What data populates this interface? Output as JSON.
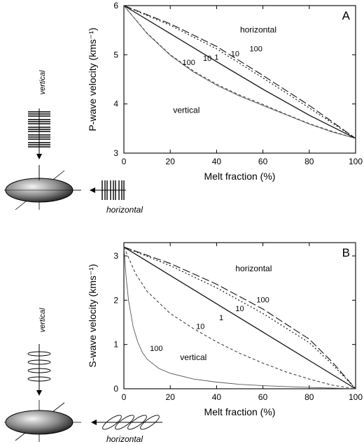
{
  "figure": {
    "side_labels": {
      "vertical": "vertical",
      "horizontal": "horizontal"
    }
  },
  "chart_data": [
    {
      "id": "A",
      "type": "line",
      "panel_label": "A",
      "xlabel": "Melt fraction (%)",
      "ylabel": "P-wave velocity (kms⁻¹)",
      "xlim": [
        0,
        100
      ],
      "ylim": [
        3,
        6
      ],
      "xticks": [
        0,
        20,
        40,
        60,
        80,
        100
      ],
      "yticks": [
        3,
        4,
        5,
        6
      ],
      "grid": false,
      "annotations": [
        {
          "text": "horizontal",
          "x": 58,
          "y": 5.45
        },
        {
          "text": "vertical",
          "x": 27,
          "y": 3.82
        },
        {
          "text": "100",
          "x": 57,
          "y": 5.07
        },
        {
          "text": "10",
          "x": 48,
          "y": 4.97
        },
        {
          "text": "1",
          "x": 40,
          "y": 4.9
        },
        {
          "text": "10",
          "x": 36,
          "y": 4.88
        },
        {
          "text": "100",
          "x": 28,
          "y": 4.79
        }
      ],
      "series": [
        {
          "style": "long-dash",
          "group": "horizontal",
          "label": "100",
          "x": [
            0,
            20,
            40,
            60,
            80,
            100
          ],
          "y": [
            6.0,
            5.63,
            5.17,
            4.58,
            3.97,
            3.3
          ]
        },
        {
          "style": "dotted",
          "group": "horizontal",
          "label": "10",
          "x": [
            0,
            20,
            40,
            60,
            80,
            100
          ],
          "y": [
            6.0,
            5.6,
            5.12,
            4.53,
            3.92,
            3.3
          ]
        },
        {
          "style": "solid",
          "group": "isotropic",
          "label": "1",
          "x": [
            0,
            20,
            40,
            60,
            80,
            100
          ],
          "y": [
            6.0,
            5.43,
            4.86,
            4.3,
            3.77,
            3.3
          ]
        },
        {
          "style": "short-dash",
          "group": "vertical",
          "label": "10",
          "x": [
            0,
            10,
            20,
            30,
            40,
            50,
            60,
            70,
            80,
            90,
            100
          ],
          "y": [
            6.0,
            5.44,
            5.0,
            4.67,
            4.4,
            4.18,
            3.99,
            3.79,
            3.6,
            3.44,
            3.3
          ]
        },
        {
          "style": "solid-thin",
          "group": "vertical",
          "label": "100",
          "x": [
            0,
            10,
            20,
            30,
            40,
            50,
            60,
            70,
            80,
            90,
            100
          ],
          "y": [
            6.0,
            5.43,
            4.99,
            4.65,
            4.38,
            4.16,
            3.97,
            3.78,
            3.59,
            3.43,
            3.3
          ]
        }
      ]
    },
    {
      "id": "B",
      "type": "line",
      "panel_label": "B",
      "xlabel": "Melt fraction (%)",
      "ylabel": "S-wave velocity (kms⁻¹)",
      "xlim": [
        0,
        100
      ],
      "ylim": [
        0,
        3.3
      ],
      "xticks": [
        0,
        20,
        40,
        60,
        80,
        100
      ],
      "yticks": [
        0,
        1,
        2,
        3
      ],
      "grid": false,
      "annotations": [
        {
          "text": "horizontal",
          "x": 56,
          "y": 2.65
        },
        {
          "text": "vertical",
          "x": 30,
          "y": 0.65
        },
        {
          "text": "100",
          "x": 60,
          "y": 1.95
        },
        {
          "text": "10",
          "x": 50,
          "y": 1.75
        },
        {
          "text": "1",
          "x": 42,
          "y": 1.55
        },
        {
          "text": "10",
          "x": 33,
          "y": 1.35
        },
        {
          "text": "100",
          "x": 14,
          "y": 0.85
        }
      ],
      "series": [
        {
          "style": "long-dash",
          "group": "horizontal",
          "label": "100",
          "x": [
            0,
            20,
            40,
            60,
            80,
            90,
            100
          ],
          "y": [
            3.2,
            2.83,
            2.36,
            1.8,
            1.12,
            0.6,
            0.0
          ]
        },
        {
          "style": "dotted",
          "group": "horizontal",
          "label": "10",
          "x": [
            0,
            20,
            40,
            60,
            80,
            90,
            100
          ],
          "y": [
            3.2,
            2.78,
            2.28,
            1.7,
            1.04,
            0.55,
            0.0
          ]
        },
        {
          "style": "solid",
          "group": "isotropic",
          "label": "1",
          "x": [
            0,
            20,
            40,
            60,
            80,
            100
          ],
          "y": [
            3.2,
            2.56,
            1.92,
            1.28,
            0.64,
            0.0
          ]
        },
        {
          "style": "short-dash",
          "group": "vertical",
          "label": "10",
          "x": [
            0,
            5,
            10,
            20,
            30,
            40,
            50,
            60,
            70,
            80,
            90,
            100
          ],
          "y": [
            3.2,
            2.6,
            2.2,
            1.7,
            1.36,
            1.06,
            0.8,
            0.58,
            0.38,
            0.22,
            0.08,
            0.0
          ]
        },
        {
          "style": "solid-thin",
          "group": "vertical",
          "label": "100",
          "x": [
            0,
            1,
            2,
            4,
            6,
            8,
            10,
            15,
            20,
            30,
            40,
            50,
            60,
            80,
            100
          ],
          "y": [
            3.2,
            2.5,
            2.0,
            1.4,
            1.05,
            0.82,
            0.67,
            0.46,
            0.35,
            0.22,
            0.15,
            0.1,
            0.07,
            0.03,
            0.0
          ]
        }
      ]
    }
  ]
}
